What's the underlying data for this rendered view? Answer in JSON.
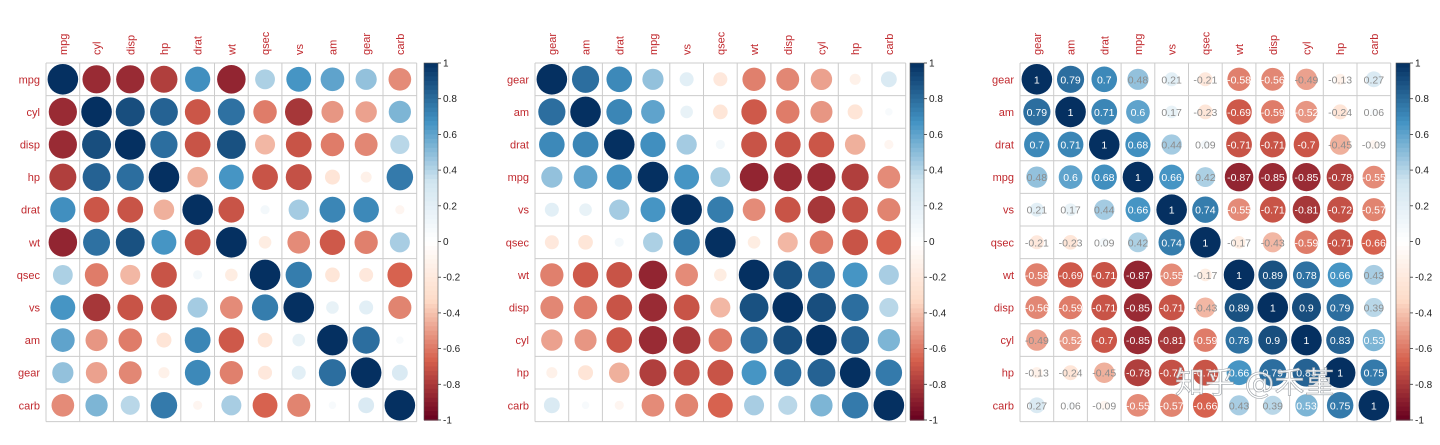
{
  "palette": {
    "negative_dark": "#67001f",
    "negative_mid": "#d6604d",
    "negative_light": "#fddbc7",
    "zero": "#ffffff",
    "positive_light": "#d1e5f0",
    "positive_mid": "#4393c3",
    "positive_dark": "#053061",
    "label_color": "#c0282d",
    "grid_color": "#cccccc"
  },
  "watermark": "知乎 @禾堇",
  "chart_data": [
    {
      "type": "heatmap",
      "method": "circle",
      "title": "",
      "variables": [
        "mpg",
        "cyl",
        "disp",
        "hp",
        "drat",
        "wt",
        "qsec",
        "vs",
        "am",
        "gear",
        "carb"
      ],
      "colorbar_ticks": [
        "1",
        "0.8",
        "0.6",
        "0.4",
        "0.2",
        "0",
        "-0.2",
        "-0.4",
        "-0.6",
        "-0.8",
        "-1"
      ],
      "range": [
        -1,
        1
      ],
      "show_values": false,
      "matrix": [
        [
          1,
          -0.85,
          -0.85,
          -0.78,
          0.68,
          -0.87,
          0.42,
          0.66,
          0.6,
          0.48,
          -0.55
        ],
        [
          -0.85,
          1,
          0.9,
          0.83,
          -0.7,
          0.78,
          -0.59,
          -0.81,
          -0.52,
          -0.49,
          0.53
        ],
        [
          -0.85,
          0.9,
          1,
          0.79,
          -0.71,
          0.89,
          -0.43,
          -0.71,
          -0.59,
          -0.56,
          0.39
        ],
        [
          -0.78,
          0.83,
          0.79,
          1,
          -0.45,
          0.66,
          -0.71,
          -0.72,
          -0.24,
          -0.13,
          0.75
        ],
        [
          0.68,
          -0.7,
          -0.71,
          -0.45,
          1,
          -0.71,
          0.09,
          0.44,
          0.71,
          0.7,
          -0.09
        ],
        [
          -0.87,
          0.78,
          0.89,
          0.66,
          -0.71,
          1,
          -0.17,
          -0.55,
          -0.69,
          -0.58,
          0.43
        ],
        [
          0.42,
          -0.59,
          -0.43,
          -0.71,
          0.09,
          -0.17,
          1,
          0.74,
          -0.23,
          -0.21,
          -0.66
        ],
        [
          0.66,
          -0.81,
          -0.71,
          -0.72,
          0.44,
          -0.55,
          0.74,
          1,
          0.17,
          0.21,
          -0.57
        ],
        [
          0.6,
          -0.52,
          -0.59,
          -0.24,
          0.71,
          -0.69,
          -0.23,
          0.17,
          1,
          0.79,
          0.06
        ],
        [
          0.48,
          -0.49,
          -0.56,
          -0.13,
          0.7,
          -0.58,
          -0.21,
          0.21,
          0.79,
          1,
          0.27
        ],
        [
          -0.55,
          0.53,
          0.39,
          0.75,
          -0.09,
          0.43,
          -0.66,
          -0.57,
          0.06,
          0.27,
          1
        ]
      ]
    },
    {
      "type": "heatmap",
      "method": "circle",
      "order": "hclust",
      "title": "",
      "variables": [
        "gear",
        "am",
        "drat",
        "mpg",
        "vs",
        "qsec",
        "wt",
        "disp",
        "cyl",
        "hp",
        "carb"
      ],
      "colorbar_ticks": [
        "1",
        "0.8",
        "0.6",
        "0.4",
        "0.2",
        "0",
        "-0.2",
        "-0.4",
        "-0.6",
        "-0.8",
        "-1"
      ],
      "range": [
        -1,
        1
      ],
      "show_values": false,
      "matrix": [
        [
          1,
          0.79,
          0.7,
          0.48,
          0.21,
          -0.21,
          -0.58,
          -0.56,
          -0.49,
          -0.13,
          0.27
        ],
        [
          0.79,
          1,
          0.71,
          0.6,
          0.17,
          -0.23,
          -0.69,
          -0.59,
          -0.52,
          -0.24,
          0.06
        ],
        [
          0.7,
          0.71,
          1,
          0.68,
          0.44,
          0.09,
          -0.71,
          -0.71,
          -0.7,
          -0.45,
          -0.09
        ],
        [
          0.48,
          0.6,
          0.68,
          1,
          0.66,
          0.42,
          -0.87,
          -0.85,
          -0.85,
          -0.78,
          -0.55
        ],
        [
          0.21,
          0.17,
          0.44,
          0.66,
          1,
          0.74,
          -0.55,
          -0.71,
          -0.81,
          -0.72,
          -0.57
        ],
        [
          -0.21,
          -0.23,
          0.09,
          0.42,
          0.74,
          1,
          -0.17,
          -0.43,
          -0.59,
          -0.71,
          -0.66
        ],
        [
          -0.58,
          -0.69,
          -0.71,
          -0.87,
          -0.55,
          -0.17,
          1,
          0.89,
          0.78,
          0.66,
          0.43
        ],
        [
          -0.56,
          -0.59,
          -0.71,
          -0.85,
          -0.71,
          -0.43,
          0.89,
          1,
          0.9,
          0.79,
          0.39
        ],
        [
          -0.49,
          -0.52,
          -0.7,
          -0.85,
          -0.81,
          -0.59,
          0.78,
          0.9,
          1,
          0.83,
          0.53
        ],
        [
          -0.13,
          -0.24,
          -0.45,
          -0.78,
          -0.72,
          -0.71,
          0.66,
          0.79,
          0.83,
          1,
          0.75
        ],
        [
          0.27,
          0.06,
          -0.09,
          -0.55,
          -0.57,
          -0.66,
          0.43,
          0.39,
          0.53,
          0.75,
          1
        ]
      ]
    },
    {
      "type": "heatmap",
      "method": "circle",
      "order": "hclust",
      "title": "",
      "variables": [
        "gear",
        "am",
        "drat",
        "mpg",
        "vs",
        "qsec",
        "wt",
        "disp",
        "cyl",
        "hp",
        "carb"
      ],
      "colorbar_ticks": [
        "1",
        "0.8",
        "0.6",
        "0.4",
        "0.2",
        "0",
        "-0.2",
        "-0.4",
        "-0.6",
        "-0.8",
        "-1"
      ],
      "range": [
        -1,
        1
      ],
      "show_values": true,
      "value_labels": [
        [
          "1",
          "0.79",
          "0.7",
          "0.48",
          "0.21",
          "-0.21",
          "-0.58",
          "-0.56",
          "-0.49",
          "-0.13",
          "0.27"
        ],
        [
          "0.79",
          "1",
          "0.71",
          "0.6",
          "0.17",
          "-0.23",
          "-0.69",
          "-0.59",
          "-0.52",
          "-0.24",
          "0.06"
        ],
        [
          "0.7",
          "0.71",
          "1",
          "0.68",
          "0.44",
          "0.09",
          "-0.71",
          "-0.71",
          "-0.7",
          "-0.45",
          "-0.09"
        ],
        [
          "0.48",
          "0.6",
          "0.68",
          "1",
          "0.66",
          "0.42",
          "-0.87",
          "-0.85",
          "-0.85",
          "-0.78",
          "-0.55"
        ],
        [
          "0.21",
          "0.17",
          "0.44",
          "0.66",
          "1",
          "0.74",
          "-0.55",
          "-0.71",
          "-0.81",
          "-0.72",
          "-0.57"
        ],
        [
          "-0.21",
          "-0.23",
          "0.09",
          "0.42",
          "0.74",
          "1",
          "-0.17",
          "-0.43",
          "-0.59",
          "-0.71",
          "-0.66"
        ],
        [
          "-0.58",
          "-0.69",
          "-0.71",
          "-0.87",
          "-0.55",
          "-0.17",
          "1",
          "0.89",
          "0.78",
          "0.66",
          "0.43"
        ],
        [
          "-0.56",
          "-0.59",
          "-0.71",
          "-0.85",
          "-0.71",
          "-0.43",
          "0.89",
          "1",
          "0.9",
          "0.79",
          "0.39"
        ],
        [
          "-0.49",
          "-0.52",
          "-0.7",
          "-0.85",
          "-0.81",
          "-0.59",
          "0.78",
          "0.9",
          "1",
          "0.83",
          "0.53"
        ],
        [
          "-0.13",
          "-0.24",
          "-0.45",
          "-0.78",
          "-0.72",
          "-0.71",
          "0.66",
          "0.79",
          "0.83",
          "1",
          "0.75"
        ],
        [
          "0.27",
          "0.06",
          "-0.09",
          "-0.55",
          "-0.57",
          "-0.66",
          "0.43",
          "0.39",
          "0.53",
          "0.75",
          "1"
        ]
      ],
      "matrix": [
        [
          1,
          0.79,
          0.7,
          0.48,
          0.21,
          -0.21,
          -0.58,
          -0.56,
          -0.49,
          -0.13,
          0.27
        ],
        [
          0.79,
          1,
          0.71,
          0.6,
          0.17,
          -0.23,
          -0.69,
          -0.59,
          -0.52,
          -0.24,
          0.06
        ],
        [
          0.7,
          0.71,
          1,
          0.68,
          0.44,
          0.09,
          -0.71,
          -0.71,
          -0.7,
          -0.45,
          -0.09
        ],
        [
          0.48,
          0.6,
          0.68,
          1,
          0.66,
          0.42,
          -0.87,
          -0.85,
          -0.85,
          -0.78,
          -0.55
        ],
        [
          0.21,
          0.17,
          0.44,
          0.66,
          1,
          0.74,
          -0.55,
          -0.71,
          -0.81,
          -0.72,
          -0.57
        ],
        [
          -0.21,
          -0.23,
          0.09,
          0.42,
          0.74,
          1,
          -0.17,
          -0.43,
          -0.59,
          -0.71,
          -0.66
        ],
        [
          -0.58,
          -0.69,
          -0.71,
          -0.87,
          -0.55,
          -0.17,
          1,
          0.89,
          0.78,
          0.66,
          0.43
        ],
        [
          -0.56,
          -0.59,
          -0.71,
          -0.85,
          -0.71,
          -0.43,
          0.89,
          1,
          0.9,
          0.79,
          0.39
        ],
        [
          -0.49,
          -0.52,
          -0.7,
          -0.85,
          -0.81,
          -0.59,
          0.78,
          0.9,
          1,
          0.83,
          0.53
        ],
        [
          -0.13,
          -0.24,
          -0.45,
          -0.78,
          -0.72,
          -0.71,
          0.66,
          0.79,
          0.83,
          1,
          0.75
        ],
        [
          0.27,
          0.06,
          -0.09,
          -0.55,
          -0.57,
          -0.66,
          0.43,
          0.39,
          0.53,
          0.75,
          1
        ]
      ]
    }
  ]
}
